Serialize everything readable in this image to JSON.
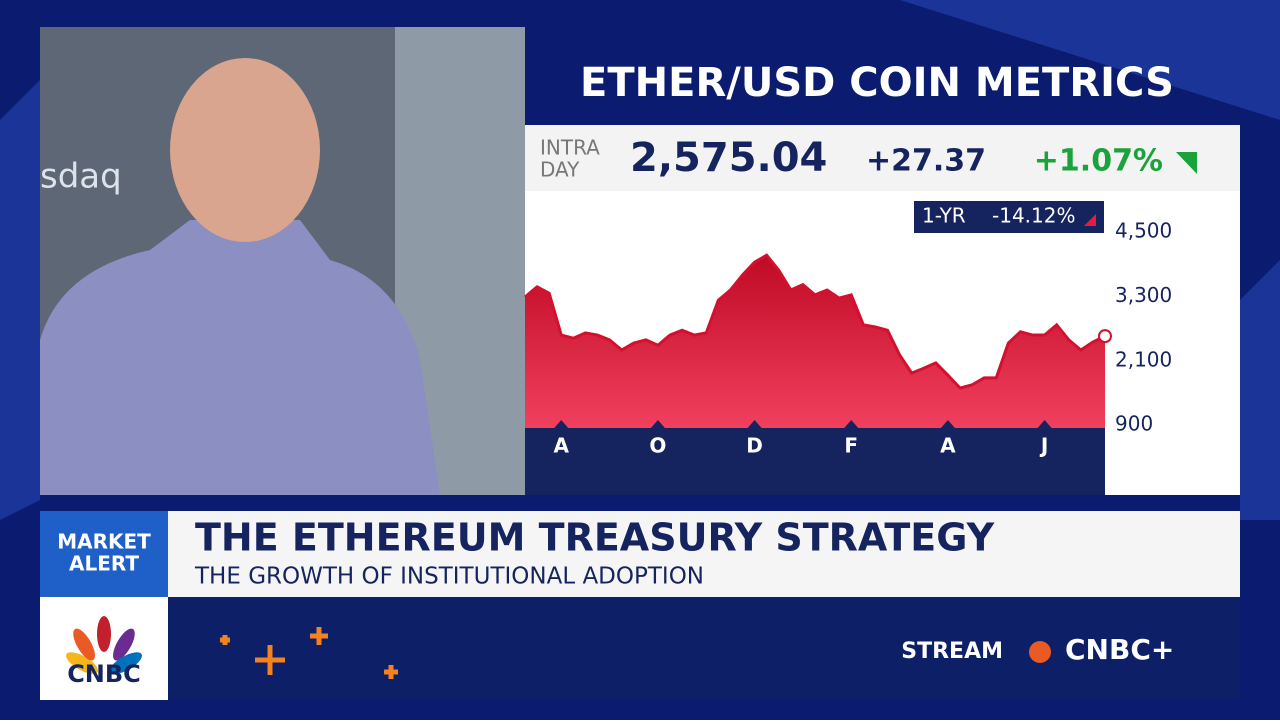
{
  "background_text": "sdaq",
  "header": {
    "title": "ETHER/USD COIN METRICS"
  },
  "quote": {
    "label_lines": [
      "INTRA",
      "DAY"
    ],
    "price": "2,575.04",
    "change": "+27.37",
    "change_pct": "+1.07%"
  },
  "period": {
    "label": "1-YR",
    "change_pct": "-14.12%"
  },
  "chart_data": {
    "type": "area",
    "color": "#d3112f",
    "categories": [
      null,
      null,
      null,
      "A",
      null,
      null,
      null,
      null,
      null,
      null,
      null,
      "O",
      null,
      null,
      null,
      null,
      null,
      null,
      null,
      "D",
      null,
      null,
      null,
      null,
      null,
      null,
      null,
      "F",
      null,
      null,
      null,
      null,
      null,
      null,
      null,
      "A",
      null,
      null,
      null,
      null,
      null,
      null,
      null,
      "J",
      null,
      null,
      null,
      null,
      null
    ],
    "values": [
      3290,
      3480,
      3360,
      2580,
      2520,
      2620,
      2580,
      2490,
      2300,
      2430,
      2490,
      2390,
      2580,
      2670,
      2580,
      2620,
      3230,
      3420,
      3700,
      3940,
      4070,
      3790,
      3420,
      3520,
      3330,
      3420,
      3270,
      3330,
      2770,
      2730,
      2670,
      2210,
      1870,
      1960,
      2060,
      1830,
      1590,
      1650,
      1780,
      1780,
      2430,
      2640,
      2580,
      2580,
      2770,
      2490,
      2300,
      2450,
      2560
    ],
    "ylim": [
      845,
      5250
    ],
    "yticks": [
      {
        "value": 900,
        "label": "900"
      },
      {
        "value": 2100,
        "label": "2,100"
      },
      {
        "value": 3300,
        "label": "3,300"
      },
      {
        "value": 4500,
        "label": "4,500"
      }
    ],
    "grid": false
  },
  "banner": {
    "tag_lines": [
      "MARKET",
      "ALERT"
    ],
    "headline": "THE ETHEREUM TREASURY STRATEGY",
    "subheadline": "THE GROWTH OF INSTITUTIONAL ADOPTION"
  },
  "footer": {
    "logo": "CNBC",
    "stream": "STREAM",
    "brand": "CNBC+"
  }
}
